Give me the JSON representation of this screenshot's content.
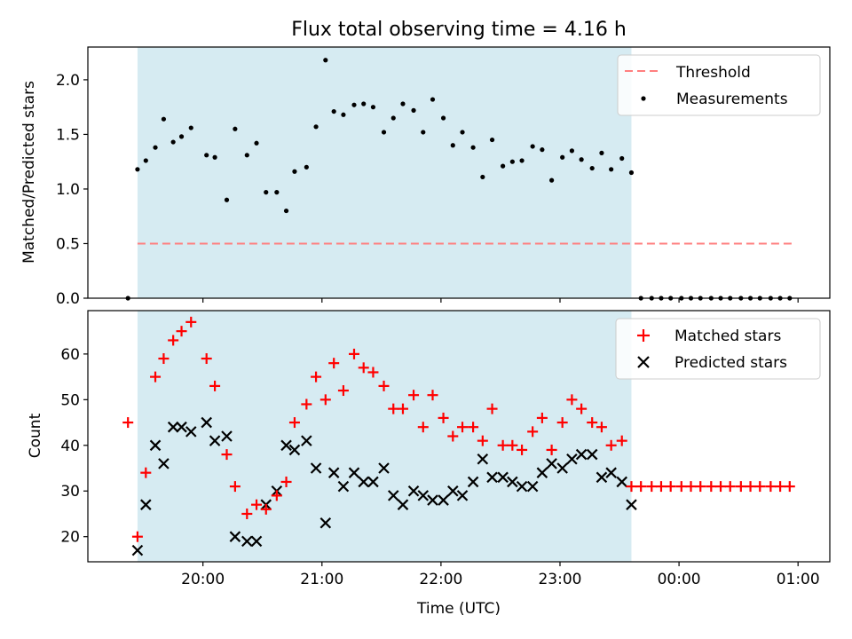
{
  "title": "Flux total observing time = 4.16 h",
  "colors": {
    "shade": "#add8e6",
    "threshold": "#ff7f7f",
    "matched": "#ff0000",
    "predicted": "#000000",
    "measurements": "#000000"
  },
  "chart_data": [
    {
      "type": "scatter",
      "panel": "top",
      "ylabel": "Matched/Predicted stars",
      "xlim": [
        19.033,
        25.267
      ],
      "ylim": [
        0.0,
        2.3
      ],
      "yticks": [
        0.0,
        0.5,
        1.0,
        1.5,
        2.0
      ],
      "ytick_labels": [
        "0.0",
        "0.5",
        "1.0",
        "1.5",
        "2.0"
      ],
      "shaded_interval": [
        19.45,
        23.6
      ],
      "legend": {
        "placement": "top-right",
        "entries": [
          {
            "label": "Threshold",
            "marker": "dashed-line"
          },
          {
            "label": "Measurements",
            "marker": "dot"
          }
        ]
      },
      "threshold": {
        "name": "Threshold",
        "y": 0.5,
        "x": [
          19.45,
          24.95
        ]
      },
      "series": [
        {
          "name": "Measurements",
          "x": [
            19.37,
            19.45,
            19.52,
            19.6,
            19.67,
            19.75,
            19.82,
            19.9,
            20.03,
            20.1,
            20.2,
            20.27,
            20.37,
            20.45,
            20.53,
            20.62,
            20.7,
            20.77,
            20.87,
            20.95,
            21.03,
            21.1,
            21.18,
            21.27,
            21.35,
            21.43,
            21.52,
            21.6,
            21.68,
            21.77,
            21.85,
            21.93,
            22.02,
            22.1,
            22.18,
            22.27,
            22.35,
            22.43,
            22.52,
            22.6,
            22.68,
            22.77,
            22.85,
            22.93,
            23.02,
            23.1,
            23.18,
            23.27,
            23.35,
            23.43,
            23.52,
            23.6,
            23.68,
            23.77,
            23.85,
            23.93,
            24.02,
            24.1,
            24.18,
            24.27,
            24.35,
            24.43,
            24.52,
            24.6,
            24.68,
            24.77,
            24.85,
            24.93
          ],
          "y": [
            0.0,
            1.18,
            1.26,
            1.38,
            1.64,
            1.43,
            1.48,
            1.56,
            1.31,
            1.29,
            0.9,
            1.55,
            1.31,
            1.42,
            0.97,
            0.97,
            0.8,
            1.16,
            1.2,
            1.57,
            2.18,
            1.71,
            1.68,
            1.77,
            1.78,
            1.75,
            1.52,
            1.65,
            1.78,
            1.72,
            1.52,
            1.82,
            1.65,
            1.4,
            1.52,
            1.38,
            1.11,
            1.45,
            1.21,
            1.25,
            1.26,
            1.39,
            1.36,
            1.08,
            1.29,
            1.35,
            1.27,
            1.19,
            1.33,
            1.18,
            1.28,
            1.15,
            0.0,
            0.0,
            0.0,
            0.0,
            0.0,
            0.0,
            0.0,
            0.0,
            0.0,
            0.0,
            0.0,
            0.0,
            0.0,
            0.0,
            0.0,
            0.0
          ]
        }
      ]
    },
    {
      "type": "scatter",
      "panel": "bottom",
      "ylabel": "Count",
      "xlabel": "Time (UTC)",
      "xlim": [
        19.033,
        25.267
      ],
      "ylim": [
        14.5,
        69.5
      ],
      "yticks": [
        20,
        30,
        40,
        50,
        60
      ],
      "ytick_labels": [
        "20",
        "30",
        "40",
        "50",
        "60"
      ],
      "xticks": [
        20,
        21,
        22,
        23,
        24,
        25
      ],
      "xtick_labels": [
        "20:00",
        "21:00",
        "22:00",
        "23:00",
        "00:00",
        "01:00"
      ],
      "shaded_interval": [
        19.45,
        23.6
      ],
      "legend": {
        "placement": "top-right",
        "entries": [
          {
            "label": "Matched stars",
            "marker": "plus"
          },
          {
            "label": "Predicted stars",
            "marker": "x"
          }
        ]
      },
      "series": [
        {
          "name": "Matched stars",
          "x": [
            19.37,
            19.45,
            19.52,
            19.6,
            19.67,
            19.75,
            19.82,
            19.9,
            20.03,
            20.1,
            20.2,
            20.27,
            20.37,
            20.45,
            20.53,
            20.62,
            20.7,
            20.77,
            20.87,
            20.95,
            21.03,
            21.1,
            21.18,
            21.27,
            21.35,
            21.43,
            21.52,
            21.6,
            21.68,
            21.77,
            21.85,
            21.93,
            22.02,
            22.1,
            22.18,
            22.27,
            22.35,
            22.43,
            22.52,
            22.6,
            22.68,
            22.77,
            22.85,
            22.93,
            23.02,
            23.1,
            23.18,
            23.27,
            23.35,
            23.43,
            23.52,
            23.6,
            23.68,
            23.77,
            23.85,
            23.93,
            24.02,
            24.1,
            24.18,
            24.27,
            24.35,
            24.43,
            24.52,
            24.6,
            24.68,
            24.77,
            24.85,
            24.93
          ],
          "y": [
            45,
            20,
            34,
            55,
            59,
            63,
            65,
            67,
            59,
            53,
            38,
            31,
            25,
            27,
            26,
            29,
            32,
            45,
            49,
            55,
            50,
            58,
            52,
            60,
            57,
            56,
            53,
            48,
            48,
            51,
            44,
            51,
            46,
            42,
            44,
            44,
            41,
            48,
            40,
            40,
            39,
            43,
            46,
            39,
            45,
            50,
            48,
            45,
            44,
            40,
            41,
            31,
            31,
            31,
            31,
            31,
            31,
            31,
            31,
            31,
            31,
            31,
            31,
            31,
            31,
            31,
            31,
            31
          ]
        },
        {
          "name": "Predicted stars",
          "x": [
            19.45,
            19.52,
            19.6,
            19.67,
            19.75,
            19.82,
            19.9,
            20.03,
            20.1,
            20.2,
            20.27,
            20.37,
            20.45,
            20.53,
            20.62,
            20.7,
            20.77,
            20.87,
            20.95,
            21.03,
            21.1,
            21.18,
            21.27,
            21.35,
            21.43,
            21.52,
            21.6,
            21.68,
            21.77,
            21.85,
            21.93,
            22.02,
            22.1,
            22.18,
            22.27,
            22.35,
            22.43,
            22.52,
            22.6,
            22.68,
            22.77,
            22.85,
            22.93,
            23.02,
            23.1,
            23.18,
            23.27,
            23.35,
            23.43,
            23.52,
            23.6
          ],
          "y": [
            17,
            27,
            40,
            36,
            44,
            44,
            43,
            45,
            41,
            42,
            20,
            19,
            19,
            27,
            30,
            40,
            39,
            41,
            35,
            23,
            34,
            31,
            34,
            32,
            32,
            35,
            29,
            27,
            30,
            29,
            28,
            28,
            30,
            29,
            32,
            37,
            33,
            33,
            32,
            31,
            31,
            34,
            36,
            35,
            37,
            38,
            38,
            33,
            34,
            32,
            27
          ]
        }
      ]
    }
  ]
}
